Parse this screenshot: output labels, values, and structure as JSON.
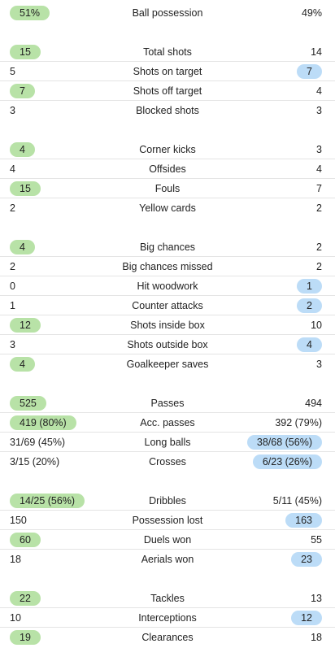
{
  "colors": {
    "home_highlight": "#b8e2a7",
    "away_highlight": "#bcdcf7",
    "divider": "#e4e4e4"
  },
  "groups": [
    {
      "rows": [
        {
          "label": "Ball possession",
          "home": "51%",
          "away": "49%",
          "highlight": "home"
        }
      ]
    },
    {
      "rows": [
        {
          "label": "Total shots",
          "home": "15",
          "away": "14",
          "highlight": "home"
        },
        {
          "label": "Shots on target",
          "home": "5",
          "away": "7",
          "highlight": "away"
        },
        {
          "label": "Shots off target",
          "home": "7",
          "away": "4",
          "highlight": "home"
        },
        {
          "label": "Blocked shots",
          "home": "3",
          "away": "3",
          "highlight": "none"
        }
      ]
    },
    {
      "rows": [
        {
          "label": "Corner kicks",
          "home": "4",
          "away": "3",
          "highlight": "home"
        },
        {
          "label": "Offsides",
          "home": "4",
          "away": "4",
          "highlight": "none"
        },
        {
          "label": "Fouls",
          "home": "15",
          "away": "7",
          "highlight": "home"
        },
        {
          "label": "Yellow cards",
          "home": "2",
          "away": "2",
          "highlight": "none"
        }
      ]
    },
    {
      "rows": [
        {
          "label": "Big chances",
          "home": "4",
          "away": "2",
          "highlight": "home"
        },
        {
          "label": "Big chances missed",
          "home": "2",
          "away": "2",
          "highlight": "none"
        },
        {
          "label": "Hit woodwork",
          "home": "0",
          "away": "1",
          "highlight": "away"
        },
        {
          "label": "Counter attacks",
          "home": "1",
          "away": "2",
          "highlight": "away"
        },
        {
          "label": "Shots inside box",
          "home": "12",
          "away": "10",
          "highlight": "home"
        },
        {
          "label": "Shots outside box",
          "home": "3",
          "away": "4",
          "highlight": "away"
        },
        {
          "label": "Goalkeeper saves",
          "home": "4",
          "away": "3",
          "highlight": "home"
        }
      ]
    },
    {
      "rows": [
        {
          "label": "Passes",
          "home": "525",
          "away": "494",
          "highlight": "home"
        },
        {
          "label": "Acc. passes",
          "home": "419 (80%)",
          "away": "392 (79%)",
          "highlight": "home"
        },
        {
          "label": "Long balls",
          "home": "31/69 (45%)",
          "away": "38/68 (56%)",
          "highlight": "away"
        },
        {
          "label": "Crosses",
          "home": "3/15 (20%)",
          "away": "6/23 (26%)",
          "highlight": "away"
        }
      ]
    },
    {
      "rows": [
        {
          "label": "Dribbles",
          "home": "14/25 (56%)",
          "away": "5/11 (45%)",
          "highlight": "home"
        },
        {
          "label": "Possession lost",
          "home": "150",
          "away": "163",
          "highlight": "away"
        },
        {
          "label": "Duels won",
          "home": "60",
          "away": "55",
          "highlight": "home"
        },
        {
          "label": "Aerials won",
          "home": "18",
          "away": "23",
          "highlight": "away"
        }
      ]
    },
    {
      "rows": [
        {
          "label": "Tackles",
          "home": "22",
          "away": "13",
          "highlight": "home"
        },
        {
          "label": "Interceptions",
          "home": "10",
          "away": "12",
          "highlight": "away"
        },
        {
          "label": "Clearances",
          "home": "19",
          "away": "18",
          "highlight": "home"
        }
      ]
    }
  ]
}
